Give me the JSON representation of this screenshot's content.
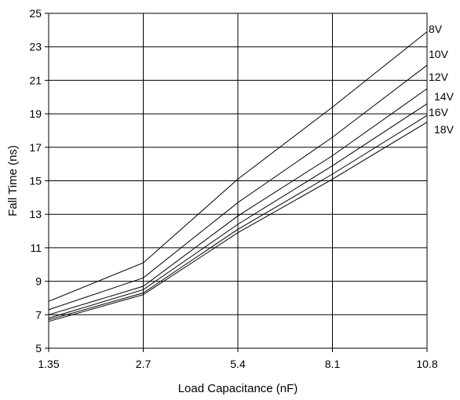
{
  "chart_data": {
    "type": "line",
    "title": "",
    "xlabel": "Load Capacitance (nF)",
    "ylabel": "Fall Time (ns)",
    "x_categories": [
      "1.35",
      "2.7",
      "5.4",
      "8.1",
      "10.8"
    ],
    "ylim": [
      5,
      25
    ],
    "y_ticks": [
      "5",
      "7",
      "9",
      "11",
      "13",
      "15",
      "17",
      "19",
      "21",
      "23",
      "25"
    ],
    "grid": true,
    "legend": "none",
    "series": [
      {
        "name": "8V",
        "values": [
          7.8,
          10.1,
          15.1,
          19.4,
          23.9
        ]
      },
      {
        "name": "10V",
        "values": [
          7.3,
          9.2,
          13.7,
          17.6,
          21.9
        ]
      },
      {
        "name": "12V",
        "values": [
          7.0,
          8.7,
          12.9,
          16.5,
          20.5
        ]
      },
      {
        "name": "14V",
        "values": [
          6.8,
          8.5,
          12.4,
          15.9,
          19.6
        ]
      },
      {
        "name": "16V",
        "values": [
          6.7,
          8.3,
          12.1,
          15.4,
          18.9
        ]
      },
      {
        "name": "18V",
        "values": [
          6.6,
          8.2,
          11.9,
          15.1,
          18.5
        ]
      }
    ],
    "colors": {
      "line": "#000000",
      "grid": "#000000"
    }
  }
}
